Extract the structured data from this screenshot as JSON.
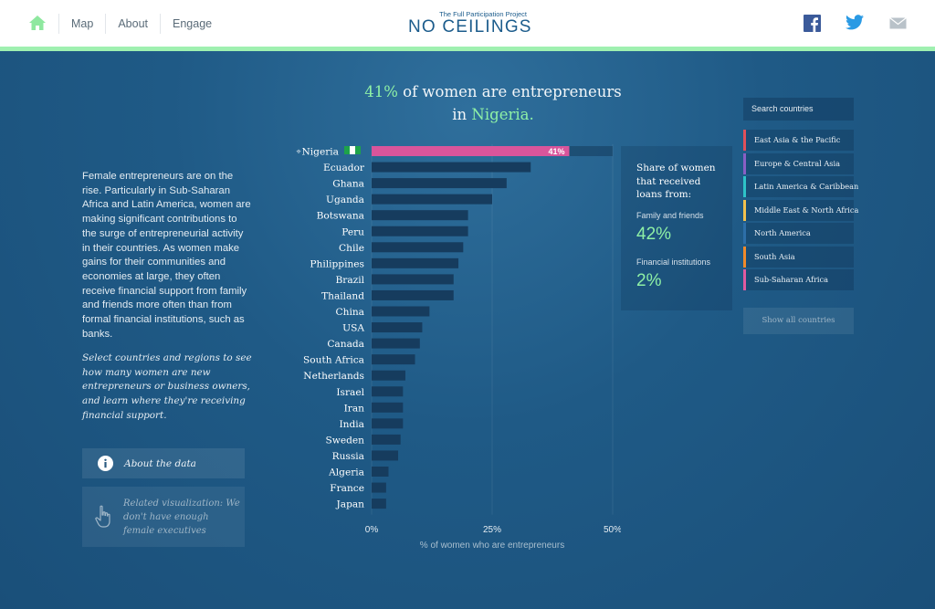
{
  "header": {
    "nav": [
      "Map",
      "About",
      "Engage"
    ],
    "logo_sub": "The Full Participation Project",
    "logo_main": "NO CEILINGS"
  },
  "colors": {
    "accent": "#8ef0a6",
    "highlight_bar": "#d9559b",
    "bar": "#163c5e",
    "header_stripe": "#9ff0b0"
  },
  "headline": {
    "pct": "41%",
    "mid": " of women are entrepreneurs",
    "in": "in ",
    "country": "Nigeria."
  },
  "intro": "Female entrepreneurs are on the rise. Particularly in Sub-Saharan Africa and Latin America, women are making significant contributions to the surge of entrepreneurial activity in their countries. As women make gains for their communities and economies at large, they often receive financial support from family and friends more often than from formal financial institutions, such as banks.",
  "prompt": "Select countries and regions to see how many women are new entrepreneurs or business owners, and learn where they're receiving financial support.",
  "about_label": "About the data",
  "related_label": "Related visualization: We don't have enough female executives",
  "info": {
    "title": "Share of women that received loans from:",
    "family_label": "Family and friends",
    "family_value": "42%",
    "fin_label": "Financial institutions",
    "fin_value": "2%"
  },
  "sidebar": {
    "search_placeholder": "Search countries",
    "regions": [
      {
        "name": "East Asia & the Pacific",
        "color": "#e0505a"
      },
      {
        "name": "Europe & Central Asia",
        "color": "#8a5fc4"
      },
      {
        "name": "Latin America & Caribbean",
        "color": "#2ec3c8"
      },
      {
        "name": "Middle East & North Africa",
        "color": "#f2c14e"
      },
      {
        "name": "North America",
        "color": "#2d6fa8"
      },
      {
        "name": "South Asia",
        "color": "#f08a2a"
      },
      {
        "name": "Sub-Saharan Africa",
        "color": "#e05aa0"
      }
    ],
    "show_all": "Show all countries"
  },
  "chart_data": {
    "type": "bar",
    "orientation": "horizontal",
    "categories": [
      "Nigeria",
      "Ecuador",
      "Ghana",
      "Uganda",
      "Botswana",
      "Peru",
      "Chile",
      "Philippines",
      "Brazil",
      "Thailand",
      "China",
      "USA",
      "Canada",
      "South Africa",
      "Netherlands",
      "Israel",
      "Iran",
      "India",
      "Sweden",
      "Russia",
      "Algeria",
      "France",
      "Japan"
    ],
    "values": [
      41,
      33,
      28,
      25,
      20,
      20,
      19,
      18,
      17,
      17,
      12,
      10.5,
      10,
      9,
      7,
      6.5,
      6.5,
      6.5,
      6,
      5.5,
      3.5,
      3,
      3
    ],
    "highlight": "Nigeria",
    "highlight_label": "41%",
    "xlabel": "% of women who are entrepreneurs",
    "xticks": [
      "0%",
      "25%",
      "50%"
    ],
    "xlim": [
      0,
      50
    ]
  }
}
